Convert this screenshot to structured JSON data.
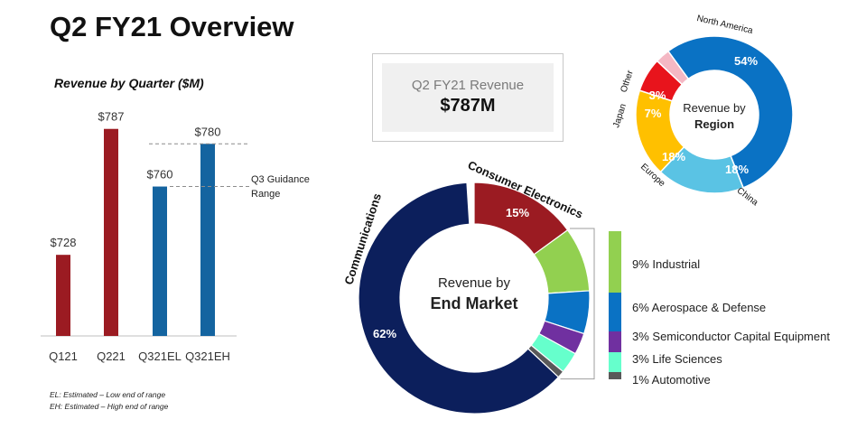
{
  "page": {
    "title": "Q2 FY21 Overview",
    "notes": [
      "EL: Estimated – Low end of range",
      "EH: Estimated – High end of range"
    ]
  },
  "kpi": {
    "label": "Q2 FY21 Revenue",
    "value": "$787M"
  },
  "chart_data": [
    {
      "type": "bar",
      "title": "Revenue by Quarter ($M)",
      "categories": [
        "Q121",
        "Q221",
        "Q321EL",
        "Q321EH"
      ],
      "values": [
        728,
        787,
        760,
        780
      ],
      "labels": [
        "$728",
        "$787",
        "$760",
        "$780"
      ],
      "colors": [
        "#9b1b22",
        "#9b1b22",
        "#1464a0",
        "#1464a0"
      ],
      "ylim": [
        690,
        800
      ],
      "annotation": "Q3 Guidance Range",
      "guidance_range": [
        760,
        780
      ]
    },
    {
      "type": "pie",
      "title": "Revenue by Region",
      "center_label": "Revenue by",
      "center_bold": "Region",
      "categories": [
        "North America",
        "China",
        "Europe",
        "Japan",
        "Other"
      ],
      "values": [
        54,
        18,
        18,
        7,
        3
      ],
      "labels": [
        "54%",
        "18%",
        "18%",
        "7%",
        "3%"
      ],
      "colors": [
        "#0a72c4",
        "#5ac3e4",
        "#ffc000",
        "#e8141c",
        "#f4b8c4"
      ]
    },
    {
      "type": "pie",
      "title": "Revenue by End Market",
      "center_label": "Revenue by",
      "center_bold": "End Market",
      "categories": [
        "Consumer Electronics",
        "Industrial",
        "Aerospace & Defense",
        "Semiconductor Capital Equipment",
        "Life Sciences",
        "Automotive",
        "Communications"
      ],
      "values": [
        15,
        9,
        6,
        3,
        3,
        1,
        62
      ],
      "labels": [
        "15%",
        "9% Industrial",
        "6% Aerospace & Defense",
        "3% Semiconductor Capital Equipment",
        "3% Life Sciences",
        "1% Automotive",
        "62%"
      ],
      "colors": [
        "#9b1b22",
        "#92d050",
        "#0a72c4",
        "#7030a0",
        "#66ffcc",
        "#595959",
        "#0c1f5c"
      ]
    }
  ]
}
